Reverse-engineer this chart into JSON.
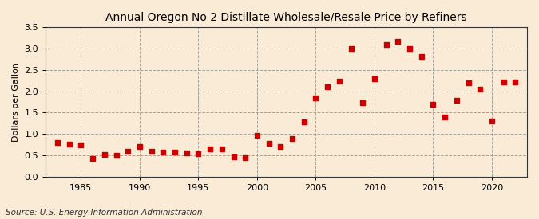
{
  "title": "Annual Oregon No 2 Distillate Wholesale/Resale Price by Refiners",
  "ylabel": "Dollars per Gallon",
  "source": "Source: U.S. Energy Information Administration",
  "background_color": "#faebd7",
  "years": [
    1983,
    1984,
    1985,
    1986,
    1987,
    1988,
    1989,
    1990,
    1991,
    1992,
    1993,
    1994,
    1995,
    1996,
    1997,
    1998,
    1999,
    2000,
    2001,
    2002,
    2003,
    2004,
    2005,
    2006,
    2007,
    2008,
    2009,
    2010,
    2011,
    2012,
    2013,
    2014,
    2015,
    2016,
    2017,
    2018,
    2019,
    2020,
    2021,
    2022
  ],
  "values": [
    0.8,
    0.76,
    0.75,
    0.42,
    0.52,
    0.5,
    0.6,
    0.7,
    0.6,
    0.58,
    0.57,
    0.55,
    0.54,
    0.65,
    0.64,
    0.46,
    0.45,
    0.97,
    0.77,
    0.71,
    0.9,
    1.28,
    1.85,
    2.1,
    2.23,
    3.01,
    1.73,
    2.29,
    3.09,
    3.17,
    3.01,
    2.82,
    1.7,
    1.39,
    1.78,
    2.2,
    2.05,
    1.31,
    2.21,
    2.22
  ],
  "marker_color": "#cc0000",
  "marker_size": 25,
  "xlim": [
    1982,
    2023
  ],
  "ylim": [
    0.0,
    3.5
  ],
  "yticks": [
    0.0,
    0.5,
    1.0,
    1.5,
    2.0,
    2.5,
    3.0,
    3.5
  ],
  "xticks": [
    1985,
    1990,
    1995,
    2000,
    2005,
    2010,
    2015,
    2020
  ],
  "grid_color": "#999999",
  "title_fontsize": 10,
  "axis_label_fontsize": 8,
  "tick_fontsize": 8,
  "source_fontsize": 7.5
}
